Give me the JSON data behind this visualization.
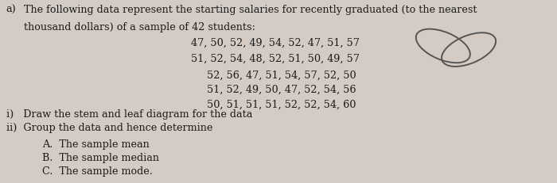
{
  "bg_color": "#d4ccc4",
  "text_color": "#1a1a1a",
  "label_a": "a)",
  "line1": "The following data represent the starting salaries for recently graduated (to the nearest",
  "line2": "thousand dollars) of a sample of 42 students:",
  "data_line1": "47, 50, 52, 49, 54, 52, 47, 51, 57",
  "data_line2": "51, 52, 54, 48, 52, 51, 50, 49, 57",
  "data_line3": "52, 56, 47, 51, 54, 57, 52, 50",
  "data_line4": "51, 52, 49, 50, 47, 52, 54, 56",
  "data_line5": "50, 51, 51, 51, 52, 52, 54, 60",
  "item_i": "i)   Draw the stem and leaf diagram for the data",
  "item_ii": "ii)  Group the data and hence determine",
  "item_A": "A.  The sample mean",
  "item_B": "B.  The sample median",
  "item_C": "C.  The sample mode.",
  "fontsize_main": 9.2,
  "fontsize_data": 9.2
}
